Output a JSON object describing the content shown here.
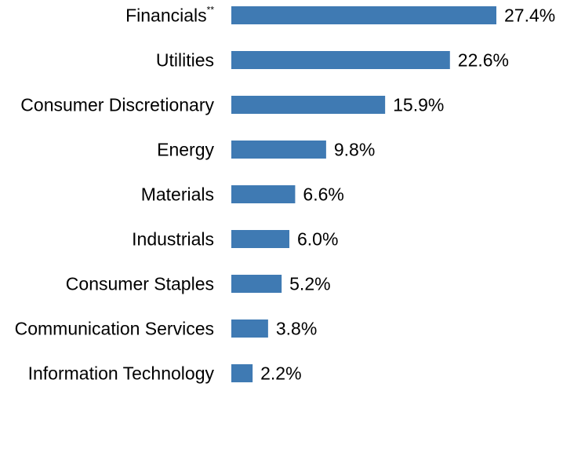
{
  "chart_data": {
    "type": "bar",
    "orientation": "horizontal",
    "categories": [
      "Financials",
      "Utilities",
      "Consumer Discretionary",
      "Energy",
      "Materials",
      "Industrials",
      "Consumer Staples",
      "Communication Services",
      "Information Technology"
    ],
    "category_footnotes": {
      "0": "**"
    },
    "values": [
      27.4,
      22.6,
      15.9,
      9.8,
      6.6,
      6.0,
      5.2,
      3.8,
      2.2
    ],
    "value_labels": [
      "27.4%",
      "22.6%",
      "15.9%",
      "9.8%",
      "6.6%",
      "6.0%",
      "5.2%",
      "3.8%",
      "2.2%"
    ],
    "xlim": [
      0,
      30
    ],
    "grid": false,
    "legend": "none",
    "bar_color": "#3f7ab3"
  }
}
